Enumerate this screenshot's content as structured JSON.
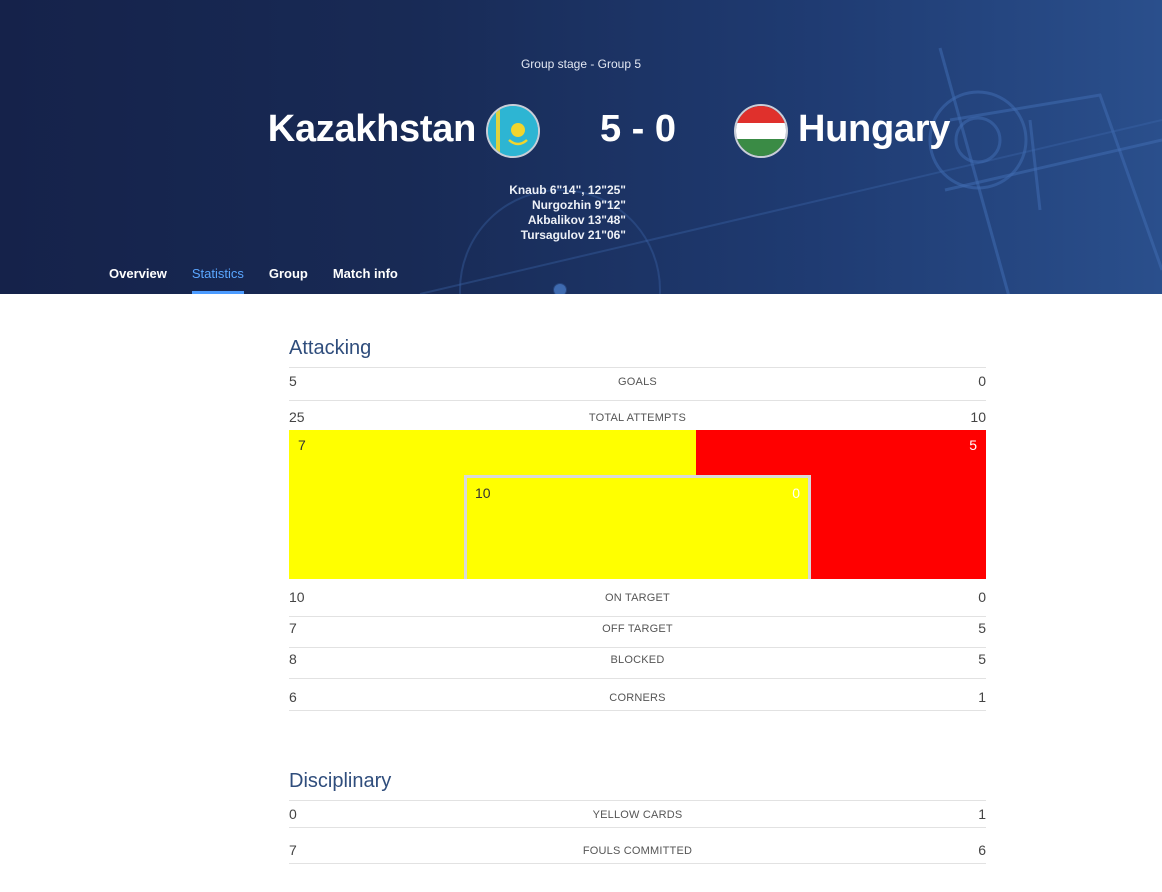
{
  "header": {
    "stage": "Group stage - Group 5",
    "home_team": "Kazakhstan",
    "away_team": "Hungary",
    "score": "5 - 0",
    "home_flag_icon": "kazakhstan-flag-icon",
    "away_flag_icon": "hungary-flag-icon",
    "scorers": [
      "Knaub 6\"14\", 12\"25\"",
      "Nurgozhin 9\"12\"",
      "Akbalikov 13\"48\"",
      "Tursagulov 21\"06\""
    ]
  },
  "tabs": [
    {
      "label": "Overview",
      "active": false
    },
    {
      "label": "Statistics",
      "active": true
    },
    {
      "label": "Group",
      "active": false
    },
    {
      "label": "Match info",
      "active": false
    }
  ],
  "attacking": {
    "title": "Attacking",
    "goals": {
      "label": "GOALS",
      "home": "5",
      "away": "0"
    },
    "total_attempts": {
      "label": "TOTAL ATTEMPTS",
      "home": "25",
      "away": "10"
    },
    "attempts_viz": {
      "outside_home": "7",
      "outside_away": "5",
      "inside_home": "10",
      "inside_away": "0",
      "home_color": "#ffff00",
      "away_color": "#ff0000"
    },
    "on_target": {
      "label": "ON TARGET",
      "home": "10",
      "away": "0"
    },
    "off_target": {
      "label": "OFF TARGET",
      "home": "7",
      "away": "5"
    },
    "blocked": {
      "label": "BLOCKED",
      "home": "8",
      "away": "5"
    },
    "corners": {
      "label": "CORNERS",
      "home": "6",
      "away": "1"
    }
  },
  "disciplinary": {
    "title": "Disciplinary",
    "yellow_cards": {
      "label": "YELLOW CARDS",
      "home": "0",
      "away": "1"
    },
    "fouls": {
      "label": "FOULS COMMITTED",
      "home": "7",
      "away": "6"
    }
  }
}
